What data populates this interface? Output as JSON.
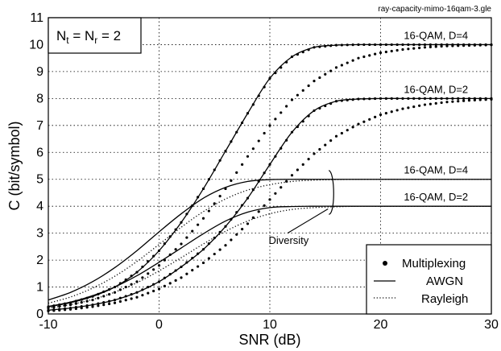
{
  "chart_data": {
    "type": "line",
    "title": "",
    "watermark": "ray-capacity-mimo-16qam-3.gle",
    "xlabel": "SNR (dB)",
    "ylabel": "C (bit/symbol)",
    "xlim": [
      -10,
      30
    ],
    "ylim": [
      0,
      11
    ],
    "xticks": [
      -10,
      0,
      10,
      20,
      30
    ],
    "yticks": [
      0,
      1,
      2,
      3,
      4,
      5,
      6,
      7,
      8,
      9,
      10,
      11
    ],
    "grid": true,
    "info_box": {
      "base": "N",
      "sub1": "t",
      "mid": " = N",
      "sub2": "r",
      "tail": " = 2"
    },
    "legend": {
      "position": "bottom-right",
      "entries": [
        {
          "label": "Multiplexing",
          "style": "dots"
        },
        {
          "label": "AWGN",
          "style": "solid"
        },
        {
          "label": "Rayleigh",
          "style": "dotted"
        }
      ]
    },
    "curve_labels": [
      {
        "text": "16-QAM, D=4",
        "group": "multiplexing",
        "x": 25,
        "y": 10
      },
      {
        "text": "16-QAM, D=2",
        "group": "multiplexing",
        "x": 25,
        "y": 8
      },
      {
        "text": "16-QAM, D=4",
        "group": "diversity",
        "x": 25,
        "y": 5
      },
      {
        "text": "16-QAM, D=2",
        "group": "diversity",
        "x": 25,
        "y": 4
      }
    ],
    "diversity_label": "Diversity",
    "x": [
      -10,
      -8,
      -6,
      -4,
      -2,
      0,
      2,
      4,
      6,
      8,
      10,
      12,
      14,
      16,
      18,
      20,
      22,
      24,
      26,
      28,
      30
    ],
    "series": [
      {
        "name": "Multiplexing D=4 AWGN",
        "group": "multiplexing",
        "channel": "AWGN",
        "style": "dots_solid",
        "values": [
          0.27,
          0.42,
          0.65,
          1.0,
          1.55,
          2.35,
          3.4,
          4.65,
          6.05,
          7.45,
          8.75,
          9.55,
          9.9,
          9.98,
          10.0,
          10.0,
          10.0,
          10.0,
          10.0,
          10.0,
          10.0
        ]
      },
      {
        "name": "Multiplexing D=4 Rayleigh",
        "group": "multiplexing",
        "channel": "Rayleigh",
        "style": "dots",
        "values": [
          0.22,
          0.34,
          0.52,
          0.8,
          1.2,
          1.8,
          2.6,
          3.55,
          4.65,
          5.85,
          7.0,
          7.95,
          8.65,
          9.15,
          9.5,
          9.7,
          9.82,
          9.9,
          9.95,
          9.97,
          9.99
        ]
      },
      {
        "name": "Multiplexing D=2 AWGN",
        "group": "multiplexing",
        "channel": "AWGN",
        "style": "dots_solid",
        "values": [
          0.14,
          0.22,
          0.34,
          0.52,
          0.8,
          1.2,
          1.75,
          2.4,
          3.25,
          4.3,
          5.55,
          6.75,
          7.55,
          7.9,
          7.98,
          8.0,
          8.0,
          8.0,
          8.0,
          8.0,
          8.0
        ]
      },
      {
        "name": "Multiplexing D=2 Rayleigh",
        "group": "multiplexing",
        "channel": "Rayleigh",
        "style": "dots",
        "values": [
          0.11,
          0.17,
          0.27,
          0.41,
          0.62,
          0.93,
          1.35,
          1.9,
          2.55,
          3.35,
          4.25,
          5.15,
          5.95,
          6.6,
          7.05,
          7.4,
          7.62,
          7.77,
          7.87,
          7.93,
          7.97
        ]
      },
      {
        "name": "Diversity D=4 AWGN",
        "group": "diversity",
        "channel": "AWGN",
        "style": "solid",
        "values": [
          0.52,
          0.8,
          1.2,
          1.72,
          2.35,
          3.05,
          3.72,
          4.3,
          4.7,
          4.92,
          4.99,
          5.0,
          5.0,
          5.0,
          5.0,
          5.0,
          5.0,
          5.0,
          5.0,
          5.0,
          5.0
        ]
      },
      {
        "name": "Diversity D=4 Rayleigh",
        "group": "diversity",
        "channel": "Rayleigh",
        "style": "dotted",
        "values": [
          0.4,
          0.63,
          0.96,
          1.4,
          1.95,
          2.58,
          3.22,
          3.8,
          4.27,
          4.6,
          4.8,
          4.92,
          4.97,
          4.99,
          5.0,
          5.0,
          5.0,
          5.0,
          5.0,
          5.0,
          5.0
        ]
      },
      {
        "name": "Diversity D=2 AWGN",
        "group": "diversity",
        "channel": "AWGN",
        "style": "solid",
        "values": [
          0.28,
          0.44,
          0.68,
          1.0,
          1.42,
          1.92,
          2.45,
          2.98,
          3.45,
          3.78,
          3.95,
          3.99,
          4.0,
          4.0,
          4.0,
          4.0,
          4.0,
          4.0,
          4.0,
          4.0,
          4.0
        ]
      },
      {
        "name": "Diversity D=2 Rayleigh",
        "group": "diversity",
        "channel": "Rayleigh",
        "style": "dotted",
        "values": [
          0.22,
          0.35,
          0.54,
          0.81,
          1.16,
          1.6,
          2.09,
          2.6,
          3.07,
          3.45,
          3.72,
          3.88,
          3.95,
          3.98,
          4.0,
          4.0,
          4.0,
          4.0,
          4.0,
          4.0,
          4.0
        ]
      }
    ]
  }
}
